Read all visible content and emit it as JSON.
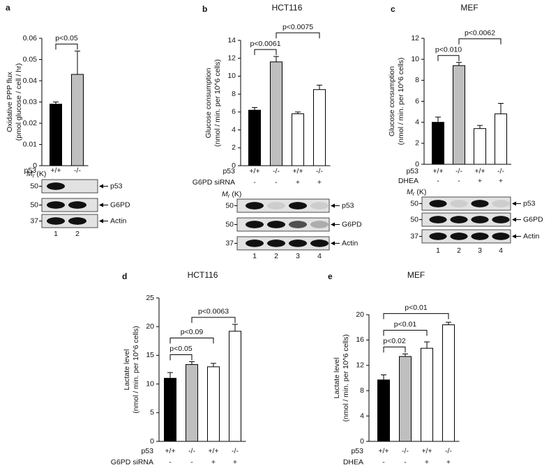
{
  "chart_data": [
    {
      "type": "bar",
      "panel": "a",
      "ylabel": [
        "Oxidative PPP flux",
        "(pmol glucose / cell / hr)"
      ],
      "rows": [
        {
          "label": "p53",
          "labels": [
            "+/+",
            "-/-"
          ]
        }
      ],
      "values": [
        0.029,
        0.043
      ],
      "errors": [
        0.001,
        0.011
      ],
      "colors": [
        "#000000",
        "#bfbfbf"
      ],
      "ylim": [
        0,
        0.06
      ],
      "yticks": [
        0,
        0.01,
        0.02,
        0.03,
        0.04,
        0.05,
        0.06
      ],
      "annotations": [
        {
          "label": "p<0.05",
          "from": 0,
          "to": 1
        }
      ],
      "blot": {
        "mr": {
          "symbol": "M",
          "subscript": "r",
          "unit": "(K)"
        },
        "bands": [
          "p53",
          "G6PD",
          "Actin"
        ],
        "markers": [
          50,
          50,
          37
        ],
        "lanes": [
          1,
          2
        ]
      }
    },
    {
      "type": "bar",
      "panel": "b",
      "title": "HCT116",
      "ylabel": [
        "Glucose consumption",
        "(nmol / min. per 10^6  cells)"
      ],
      "rows": [
        {
          "label": "p53",
          "labels": [
            "+/+",
            "-/-",
            "+/+",
            "-/-"
          ]
        },
        {
          "label": "G6PD siRNA",
          "labels": [
            "-",
            "-",
            "+",
            "+"
          ]
        }
      ],
      "values": [
        6.2,
        11.6,
        5.8,
        8.5
      ],
      "errors": [
        0.3,
        0.6,
        0.2,
        0.5
      ],
      "colors": [
        "#000000",
        "#bfbfbf",
        "#ffffff",
        "#ffffff"
      ],
      "ylim": [
        0,
        14
      ],
      "yticks": [
        0,
        2,
        4,
        6,
        8,
        10,
        12,
        14
      ],
      "annotations": [
        {
          "label": "p<0.0061",
          "from": 0,
          "to": 1
        },
        {
          "label": "p<0.0075",
          "from": 1,
          "to": 3
        }
      ],
      "blot": {
        "mr": {
          "symbol": "M",
          "subscript": "r",
          "unit": "(K)"
        },
        "bands": [
          "p53",
          "G6PD",
          "Actin"
        ],
        "markers": [
          50,
          50,
          37
        ],
        "lanes": [
          1,
          2,
          3,
          4
        ]
      }
    },
    {
      "type": "bar",
      "panel": "c",
      "title": "MEF",
      "ylabel": [
        "Glucose consumption",
        "(nmol / min. per 10^6  cells)"
      ],
      "rows": [
        {
          "label": "p53",
          "labels": [
            "+/+",
            "-/-",
            "+/+",
            "-/-"
          ]
        },
        {
          "label": "DHEA",
          "labels": [
            "-",
            "-",
            "+",
            "+"
          ]
        }
      ],
      "values": [
        4.0,
        9.4,
        3.4,
        4.8
      ],
      "errors": [
        0.5,
        0.3,
        0.3,
        1.0
      ],
      "colors": [
        "#000000",
        "#bfbfbf",
        "#ffffff",
        "#ffffff"
      ],
      "ylim": [
        0,
        12
      ],
      "yticks": [
        0,
        2,
        4,
        6,
        8,
        10,
        12
      ],
      "annotations": [
        {
          "label": "p<0.010",
          "from": 0,
          "to": 1
        },
        {
          "label": "p<0.0062",
          "from": 1,
          "to": 3
        }
      ],
      "blot": {
        "mr": {
          "symbol": "M",
          "subscript": "r",
          "unit": "(K)"
        },
        "bands": [
          "p53",
          "G6PD",
          "Actin"
        ],
        "markers": [
          50,
          50,
          37
        ],
        "lanes": [
          1,
          2,
          3,
          4
        ]
      }
    },
    {
      "type": "bar",
      "panel": "d",
      "title": "HCT116",
      "ylabel": [
        "Lactate level",
        "(nmol / min. per 10^6  cells)"
      ],
      "rows": [
        {
          "label": "p53",
          "labels": [
            "+/+",
            "-/-",
            "+/+",
            "-/-"
          ]
        },
        {
          "label": "G6PD siRNA",
          "labels": [
            "-",
            "-",
            "+",
            "+"
          ]
        }
      ],
      "values": [
        11.0,
        13.4,
        13.0,
        19.2
      ],
      "errors": [
        1.0,
        0.5,
        0.6,
        1.2
      ],
      "colors": [
        "#000000",
        "#bfbfbf",
        "#ffffff",
        "#ffffff"
      ],
      "ylim": [
        0,
        25
      ],
      "yticks": [
        0,
        5,
        10,
        15,
        20,
        25
      ],
      "annotations": [
        {
          "label": "p<0.05",
          "from": 0,
          "to": 1
        },
        {
          "label": "p<0.09",
          "from": 0,
          "to": 2
        },
        {
          "label": "p<0.0063",
          "from": 1,
          "to": 3
        }
      ]
    },
    {
      "type": "bar",
      "panel": "e",
      "title": "MEF",
      "ylabel": [
        "Lactate level",
        "(nmol / min. per 10^6  cells)"
      ],
      "rows": [
        {
          "label": "p53",
          "labels": [
            "+/+",
            "-/-",
            "+/+",
            "-/-"
          ]
        },
        {
          "label": "DHEA",
          "labels": [
            "-",
            "-",
            "+",
            "+"
          ]
        }
      ],
      "values": [
        9.7,
        13.4,
        14.7,
        18.4
      ],
      "errors": [
        0.8,
        0.4,
        1.0,
        0.4
      ],
      "colors": [
        "#000000",
        "#bfbfbf",
        "#ffffff",
        "#ffffff"
      ],
      "ylim": [
        0,
        20
      ],
      "yticks": [
        0,
        4,
        8,
        12,
        16,
        20
      ],
      "annotations": [
        {
          "label": "p<0.02",
          "from": 0,
          "to": 1
        },
        {
          "label": "p<0.01",
          "from": 0,
          "to": 2
        },
        {
          "label": "p<0.01",
          "from": 0,
          "to": 3
        }
      ]
    }
  ]
}
